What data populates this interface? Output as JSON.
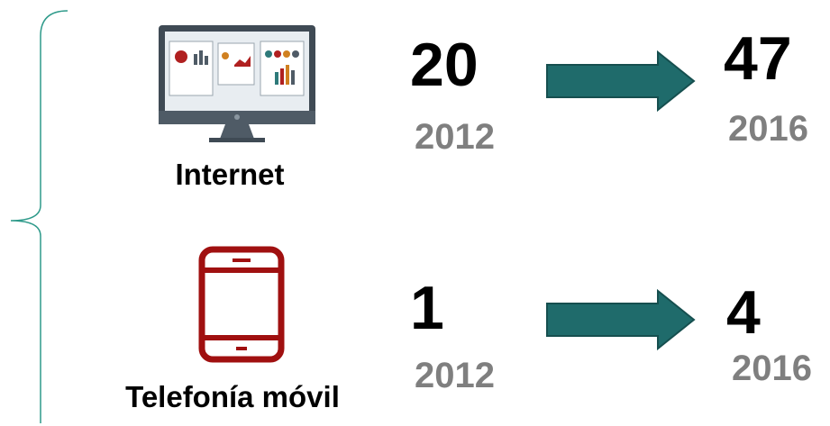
{
  "rows": [
    {
      "label": "Internet",
      "from": {
        "value": 20,
        "year": "2012"
      },
      "to": {
        "value": 47,
        "year": "2016"
      }
    },
    {
      "label": "Telefonía móvil",
      "from": {
        "value": 1,
        "year": "2012"
      },
      "to": {
        "value": 4,
        "year": "2016"
      }
    }
  ]
}
